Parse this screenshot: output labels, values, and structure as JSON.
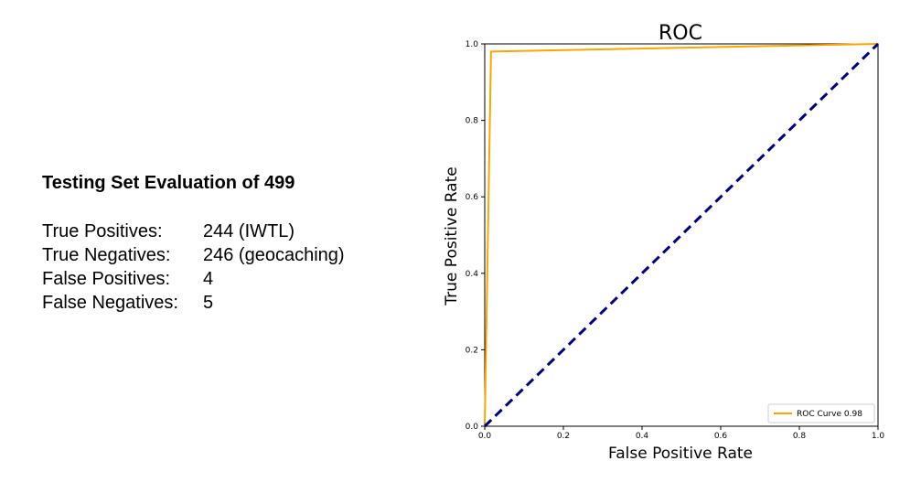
{
  "evaluation": {
    "title": "Testing Set Evaluation of 499",
    "rows": [
      {
        "label": "True Positives:",
        "value": "244 (IWTL)"
      },
      {
        "label": "True Negatives:",
        "value": "246 (geocaching)"
      },
      {
        "label": "False Positives:",
        "value": "4"
      },
      {
        "label": "False Negatives:",
        "value": "5"
      }
    ]
  },
  "chart_data": {
    "type": "line",
    "title": "ROC",
    "xlabel": "False Positive Rate",
    "ylabel": "True Positive Rate",
    "xlim": [
      0,
      1
    ],
    "ylim": [
      0,
      1
    ],
    "xticks": [
      "0.0",
      "0.2",
      "0.4",
      "0.6",
      "0.8",
      "1.0"
    ],
    "yticks": [
      "0.0",
      "0.2",
      "0.4",
      "0.6",
      "0.8",
      "1.0"
    ],
    "grid": false,
    "legend_position": "lower-right",
    "series": [
      {
        "name": "ROC Curve 0.98",
        "color": "#ffa500",
        "style": "solid",
        "x": [
          0.0,
          0.016,
          1.0
        ],
        "y": [
          0.0,
          0.98,
          1.0
        ]
      },
      {
        "name": "",
        "color": "#000080",
        "style": "dashed",
        "x": [
          0.0,
          1.0
        ],
        "y": [
          0.0,
          1.0
        ]
      }
    ]
  }
}
